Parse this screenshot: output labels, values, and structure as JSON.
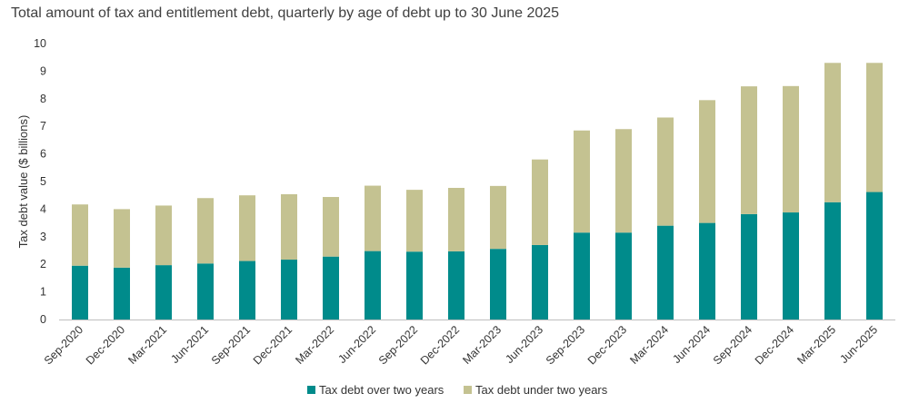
{
  "chart_data": {
    "type": "bar",
    "stacked": true,
    "title": "Total amount of tax and entitlement debt, quarterly by age of debt up to 30 June 2025",
    "ylabel": "Tax debt value ($ billions)",
    "xlabel": "",
    "ylim": [
      0,
      10
    ],
    "yticks": [
      0,
      1,
      2,
      3,
      4,
      5,
      6,
      7,
      8,
      9,
      10
    ],
    "grid": false,
    "legend_position": "bottom",
    "categories": [
      "Sep-2020",
      "Dec-2020",
      "Mar-2021",
      "Jun-2021",
      "Sep-2021",
      "Dec-2021",
      "Mar-2022",
      "Jun-2022",
      "Sep-2022",
      "Dec-2022",
      "Mar-2023",
      "Jun-2023",
      "Sep-2023",
      "Dec-2023",
      "Mar-2024",
      "Jun-2024",
      "Sep-2024",
      "Dec-2024",
      "Mar-2025",
      "Jun-2025"
    ],
    "series": [
      {
        "name": "Tax debt over two years",
        "color": "#008b8b",
        "values": [
          1.95,
          1.88,
          1.97,
          2.03,
          2.12,
          2.17,
          2.28,
          2.48,
          2.46,
          2.47,
          2.56,
          2.7,
          3.15,
          3.15,
          3.4,
          3.5,
          3.82,
          3.88,
          4.25,
          4.62
        ]
      },
      {
        "name": "Tax debt under two years",
        "color": "#c4c291",
        "values": [
          2.22,
          2.12,
          2.16,
          2.37,
          2.38,
          2.37,
          2.16,
          2.37,
          2.24,
          2.3,
          2.28,
          3.1,
          3.7,
          3.75,
          3.92,
          4.45,
          4.63,
          4.58,
          5.05,
          4.68
        ]
      }
    ]
  }
}
